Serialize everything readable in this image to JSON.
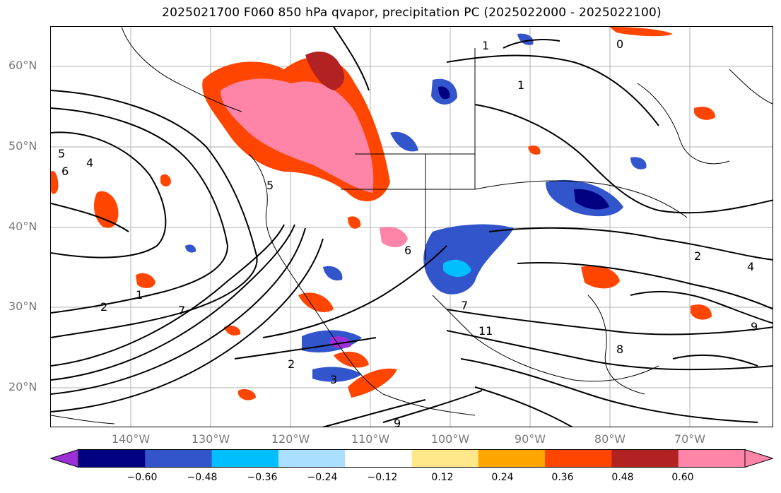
{
  "title": "2025021700 F060 850 hPa qvapor, precipitation PC (2025022000 - 2025022100)",
  "lat_labels": [
    "60°N",
    "50°N",
    "40°N",
    "30°N",
    "20°N"
  ],
  "lon_labels": [
    "140°W",
    "130°W",
    "120°W",
    "110°W",
    "100°W",
    "90°W",
    "80°W",
    "70°W"
  ],
  "colorbar": {
    "ticks": [
      "−0.60",
      "−0.48",
      "−0.36",
      "−0.24",
      "−0.12",
      "0.12",
      "0.24",
      "0.36",
      "0.48",
      "0.60"
    ],
    "colors": [
      "#9b30d8",
      "#000080",
      "#3355cc",
      "#00bfff",
      "#aadfff",
      "#ffffff",
      "#ffe88a",
      "#ffa500",
      "#ff4500",
      "#b22222",
      "#ff85a8",
      "#ff85a8"
    ]
  },
  "contour_labels": [
    "1",
    "1",
    "2",
    "2",
    "2",
    "3",
    "4",
    "4",
    "5",
    "5",
    "6",
    "6",
    "7",
    "7",
    "8",
    "9",
    "9",
    "11",
    "1",
    "0"
  ]
}
